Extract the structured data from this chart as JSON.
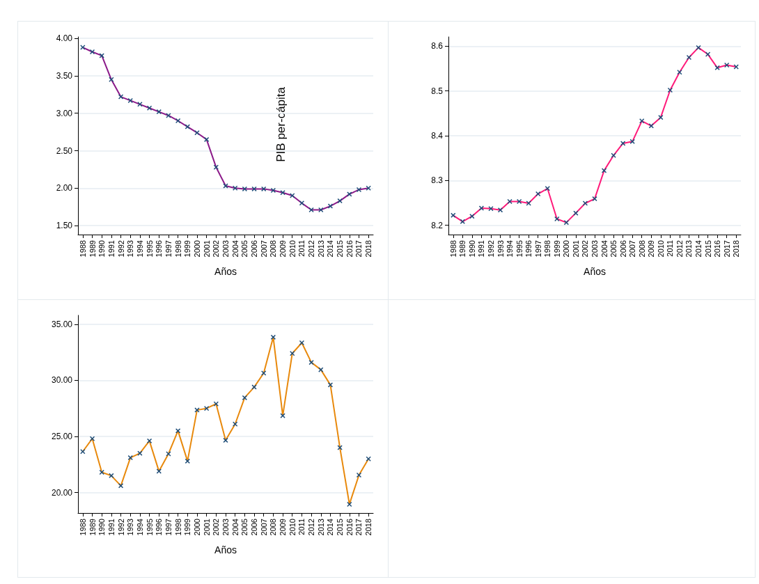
{
  "chart_data": [
    {
      "type": "line",
      "xlabel": "Años",
      "annotations": [
        "PIB per-cápita"
      ],
      "categories": [
        "1988",
        "1989",
        "1990",
        "1991",
        "1992",
        "1993",
        "1994",
        "1995",
        "1996",
        "1997",
        "1998",
        "1999",
        "2000",
        "2001",
        "2002",
        "2003",
        "2004",
        "2005",
        "2006",
        "2007",
        "2008",
        "2009",
        "2010",
        "2011",
        "2012",
        "2013",
        "2014",
        "2015",
        "2016",
        "2017",
        "2018"
      ],
      "series": [
        {
          "color": "#8b1a89",
          "values": [
            3.88,
            3.82,
            3.77,
            3.45,
            3.22,
            3.17,
            3.12,
            3.07,
            3.02,
            2.97,
            2.9,
            2.82,
            2.74,
            2.65,
            2.28,
            2.03,
            2.0,
            1.99,
            1.99,
            1.99,
            1.97,
            1.94,
            1.9,
            1.8,
            1.71,
            1.71,
            1.76,
            1.83,
            1.92,
            1.98,
            2.0
          ]
        }
      ],
      "ylim": [
        1.38,
        4.02
      ],
      "yticks": [
        {
          "value": 1.5,
          "label": "1.50"
        },
        {
          "value": 2,
          "label": "2.00"
        },
        {
          "value": 2.5,
          "label": "2.50"
        },
        {
          "value": 3,
          "label": "3.00"
        },
        {
          "value": 3.5,
          "label": "3.50"
        },
        {
          "value": 4,
          "label": "4.00"
        }
      ],
      "grid": "y",
      "marker": "cross"
    },
    {
      "type": "line",
      "xlabel": "Años",
      "categories": [
        "1988",
        "1989",
        "1990",
        "1991",
        "1992",
        "1993",
        "1994",
        "1995",
        "1996",
        "1997",
        "1998",
        "1999",
        "2000",
        "2001",
        "2002",
        "2003",
        "2004",
        "2005",
        "2006",
        "2007",
        "2008",
        "2009",
        "2010",
        "2011",
        "2012",
        "2013",
        "2014",
        "2015",
        "2016",
        "2017",
        "2018"
      ],
      "series": [
        {
          "color": "#ff1a7a",
          "values": [
            8.222,
            8.208,
            8.22,
            8.238,
            8.237,
            8.234,
            8.253,
            8.253,
            8.249,
            8.27,
            8.282,
            8.214,
            8.206,
            8.227,
            8.249,
            8.259,
            8.322,
            8.356,
            8.383,
            8.387,
            8.433,
            8.422,
            8.441,
            8.502,
            8.542,
            8.575,
            8.597,
            8.582,
            8.552,
            8.558,
            8.554
          ]
        }
      ],
      "ylim": [
        8.179,
        8.621
      ],
      "yticks": [
        8.2,
        8.3,
        8.4,
        8.5,
        8.6
      ],
      "grid": "y",
      "marker": "cross"
    },
    {
      "type": "line",
      "xlabel": "Años",
      "categories": [
        "1988",
        "1989",
        "1990",
        "1991",
        "1992",
        "1993",
        "1994",
        "1995",
        "1996",
        "1997",
        "1998",
        "1999",
        "2000",
        "2001",
        "2002",
        "2003",
        "2004",
        "2005",
        "2006",
        "2007",
        "2008",
        "2009",
        "2010",
        "2011",
        "2012",
        "2013",
        "2014",
        "2015",
        "2016",
        "2017",
        "2018"
      ],
      "series": [
        {
          "color": "#e8890c",
          "values": [
            23.65,
            24.8,
            21.8,
            21.5,
            20.6,
            23.1,
            23.5,
            24.6,
            21.9,
            23.45,
            25.5,
            22.8,
            27.35,
            27.5,
            27.9,
            24.65,
            26.1,
            28.45,
            29.4,
            30.65,
            33.85,
            26.85,
            32.4,
            33.35,
            31.6,
            30.95,
            29.6,
            24.0,
            18.95,
            21.55,
            23.0
          ]
        }
      ],
      "ylim": [
        18.17,
        35.8
      ],
      "yticks": [
        {
          "value": 20,
          "label": "20.00"
        },
        {
          "value": 25,
          "label": "25.00"
        },
        {
          "value": 30,
          "label": "30.00"
        },
        {
          "value": 35,
          "label": "35.00"
        }
      ],
      "grid": "y",
      "marker": "cross"
    }
  ]
}
